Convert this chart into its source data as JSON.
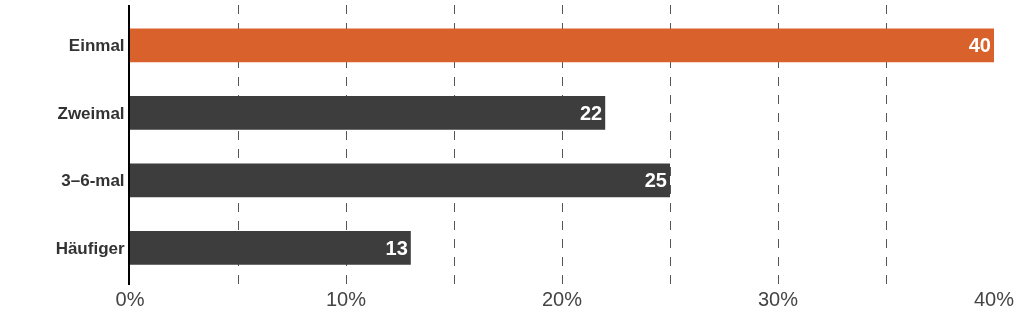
{
  "chart_data": {
    "type": "bar",
    "orientation": "horizontal",
    "categories": [
      "Einmal",
      "Zweimal",
      "3–6-mal",
      "Häufiger"
    ],
    "values": [
      40,
      22,
      25,
      13
    ],
    "colors": [
      "#d9612b",
      "#3d3d3d",
      "#3d3d3d",
      "#3d3d3d"
    ],
    "xlim": [
      0,
      40
    ],
    "xticks": [
      {
        "value": 0,
        "label": "0%"
      },
      {
        "value": 5,
        "label": null
      },
      {
        "value": 10,
        "label": "10%"
      },
      {
        "value": 15,
        "label": null
      },
      {
        "value": 20,
        "label": "20%"
      },
      {
        "value": 25,
        "label": null
      },
      {
        "value": 30,
        "label": "30%"
      },
      {
        "value": 35,
        "label": null
      },
      {
        "value": 40,
        "label": "40%"
      }
    ],
    "grid": "x",
    "data_labels": true,
    "legend": false
  }
}
